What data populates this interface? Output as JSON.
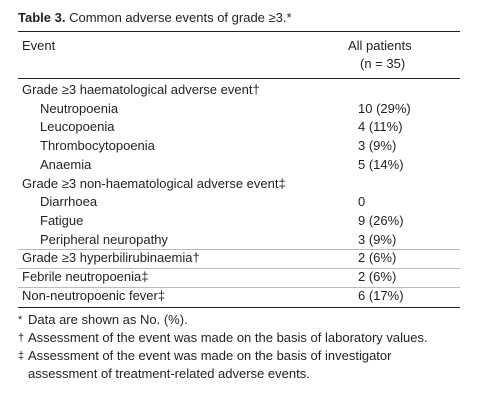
{
  "title": {
    "label": "Table 3.",
    "text": "Common adverse events of grade ≥3.*"
  },
  "table": {
    "header": {
      "event": "Event",
      "value_line1": "All patients",
      "value_line2": "(n = 35)"
    },
    "rows": [
      {
        "label": "Grade ≥3 haematological adverse event†",
        "items": [
          {
            "label": "Neutropoenia",
            "value": "10 (29%)"
          },
          {
            "label": "Leucopoenia",
            "value": "4 (11%)"
          },
          {
            "label": "Thrombocytopoenia",
            "value": "3 (9%)"
          },
          {
            "label": "Anaemia",
            "value": "5 (14%)"
          }
        ]
      },
      {
        "label": "Grade ≥3 non-haematological adverse event‡",
        "items": [
          {
            "label": "Diarrhoea",
            "value": "0"
          },
          {
            "label": "Fatigue",
            "value": "9 (26%)"
          },
          {
            "label": "Peripheral neuropathy",
            "value": "3 (9%)"
          }
        ]
      },
      {
        "label": "Grade ≥3 hyperbilirubinaemia†",
        "value": "2 (6%)"
      },
      {
        "label": "Febrile neutropoenia‡",
        "value": "2 (6%)"
      },
      {
        "label": "Non-neutropoenic fever‡",
        "value": "6 (17%)"
      }
    ]
  },
  "footnotes": [
    {
      "symbol": "*",
      "text": "Data are shown as No. (%)."
    },
    {
      "symbol": "†",
      "text": "Assessment of the event was made on the basis of laboratory values."
    },
    {
      "symbol": "‡",
      "text": "Assessment of the event was made on the basis of investigator assessment of treatment-related adverse events."
    }
  ]
}
